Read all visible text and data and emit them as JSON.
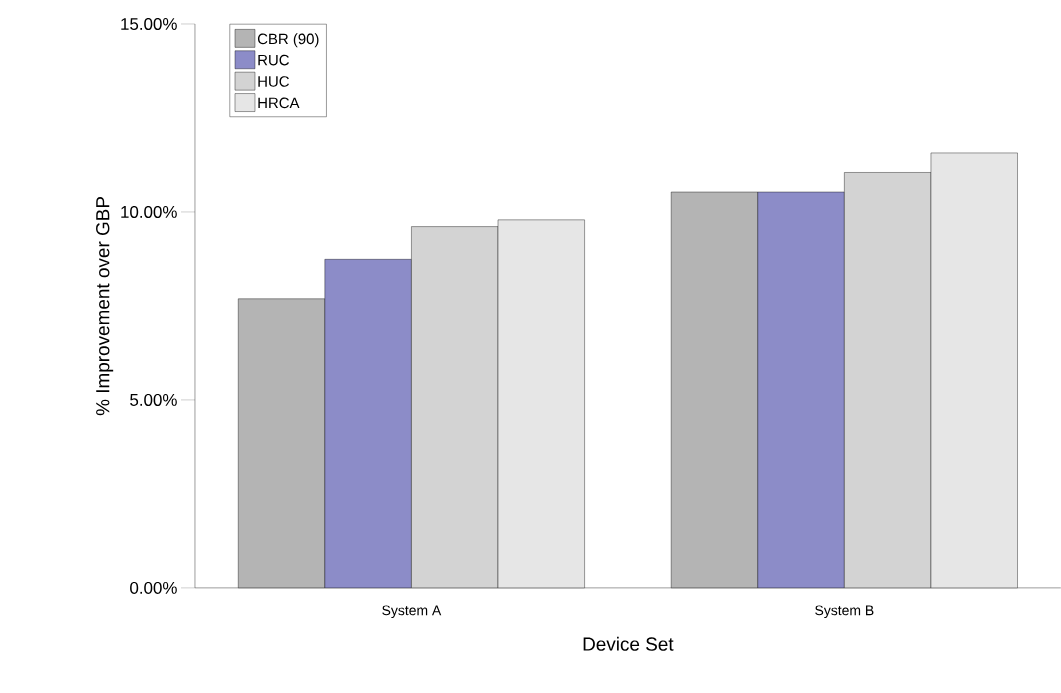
{
  "chart_data": {
    "type": "bar",
    "xlabel": "Device Set",
    "ylabel": "% Improvement over GBP",
    "categories": [
      "System A",
      "System B"
    ],
    "series": [
      {
        "name": "CBR (90)",
        "color": "#b4b4b4",
        "values": [
          7.69,
          10.53
        ]
      },
      {
        "name": "RUC",
        "color": "#8c8cc8",
        "values": [
          8.74,
          10.53
        ]
      },
      {
        "name": "HUC",
        "color": "#d3d3d3",
        "values": [
          9.61,
          11.05
        ]
      },
      {
        "name": "HRCA",
        "color": "#e6e6e6",
        "values": [
          9.79,
          11.57
        ]
      }
    ],
    "ylim": [
      0,
      15
    ],
    "yticks": [
      {
        "value": 0,
        "label": "0.00%"
      },
      {
        "value": 5,
        "label": "5.00%"
      },
      {
        "value": 10,
        "label": "10.00%"
      },
      {
        "value": 15,
        "label": "15.00%"
      }
    ],
    "grid": false,
    "legend": "top left"
  }
}
